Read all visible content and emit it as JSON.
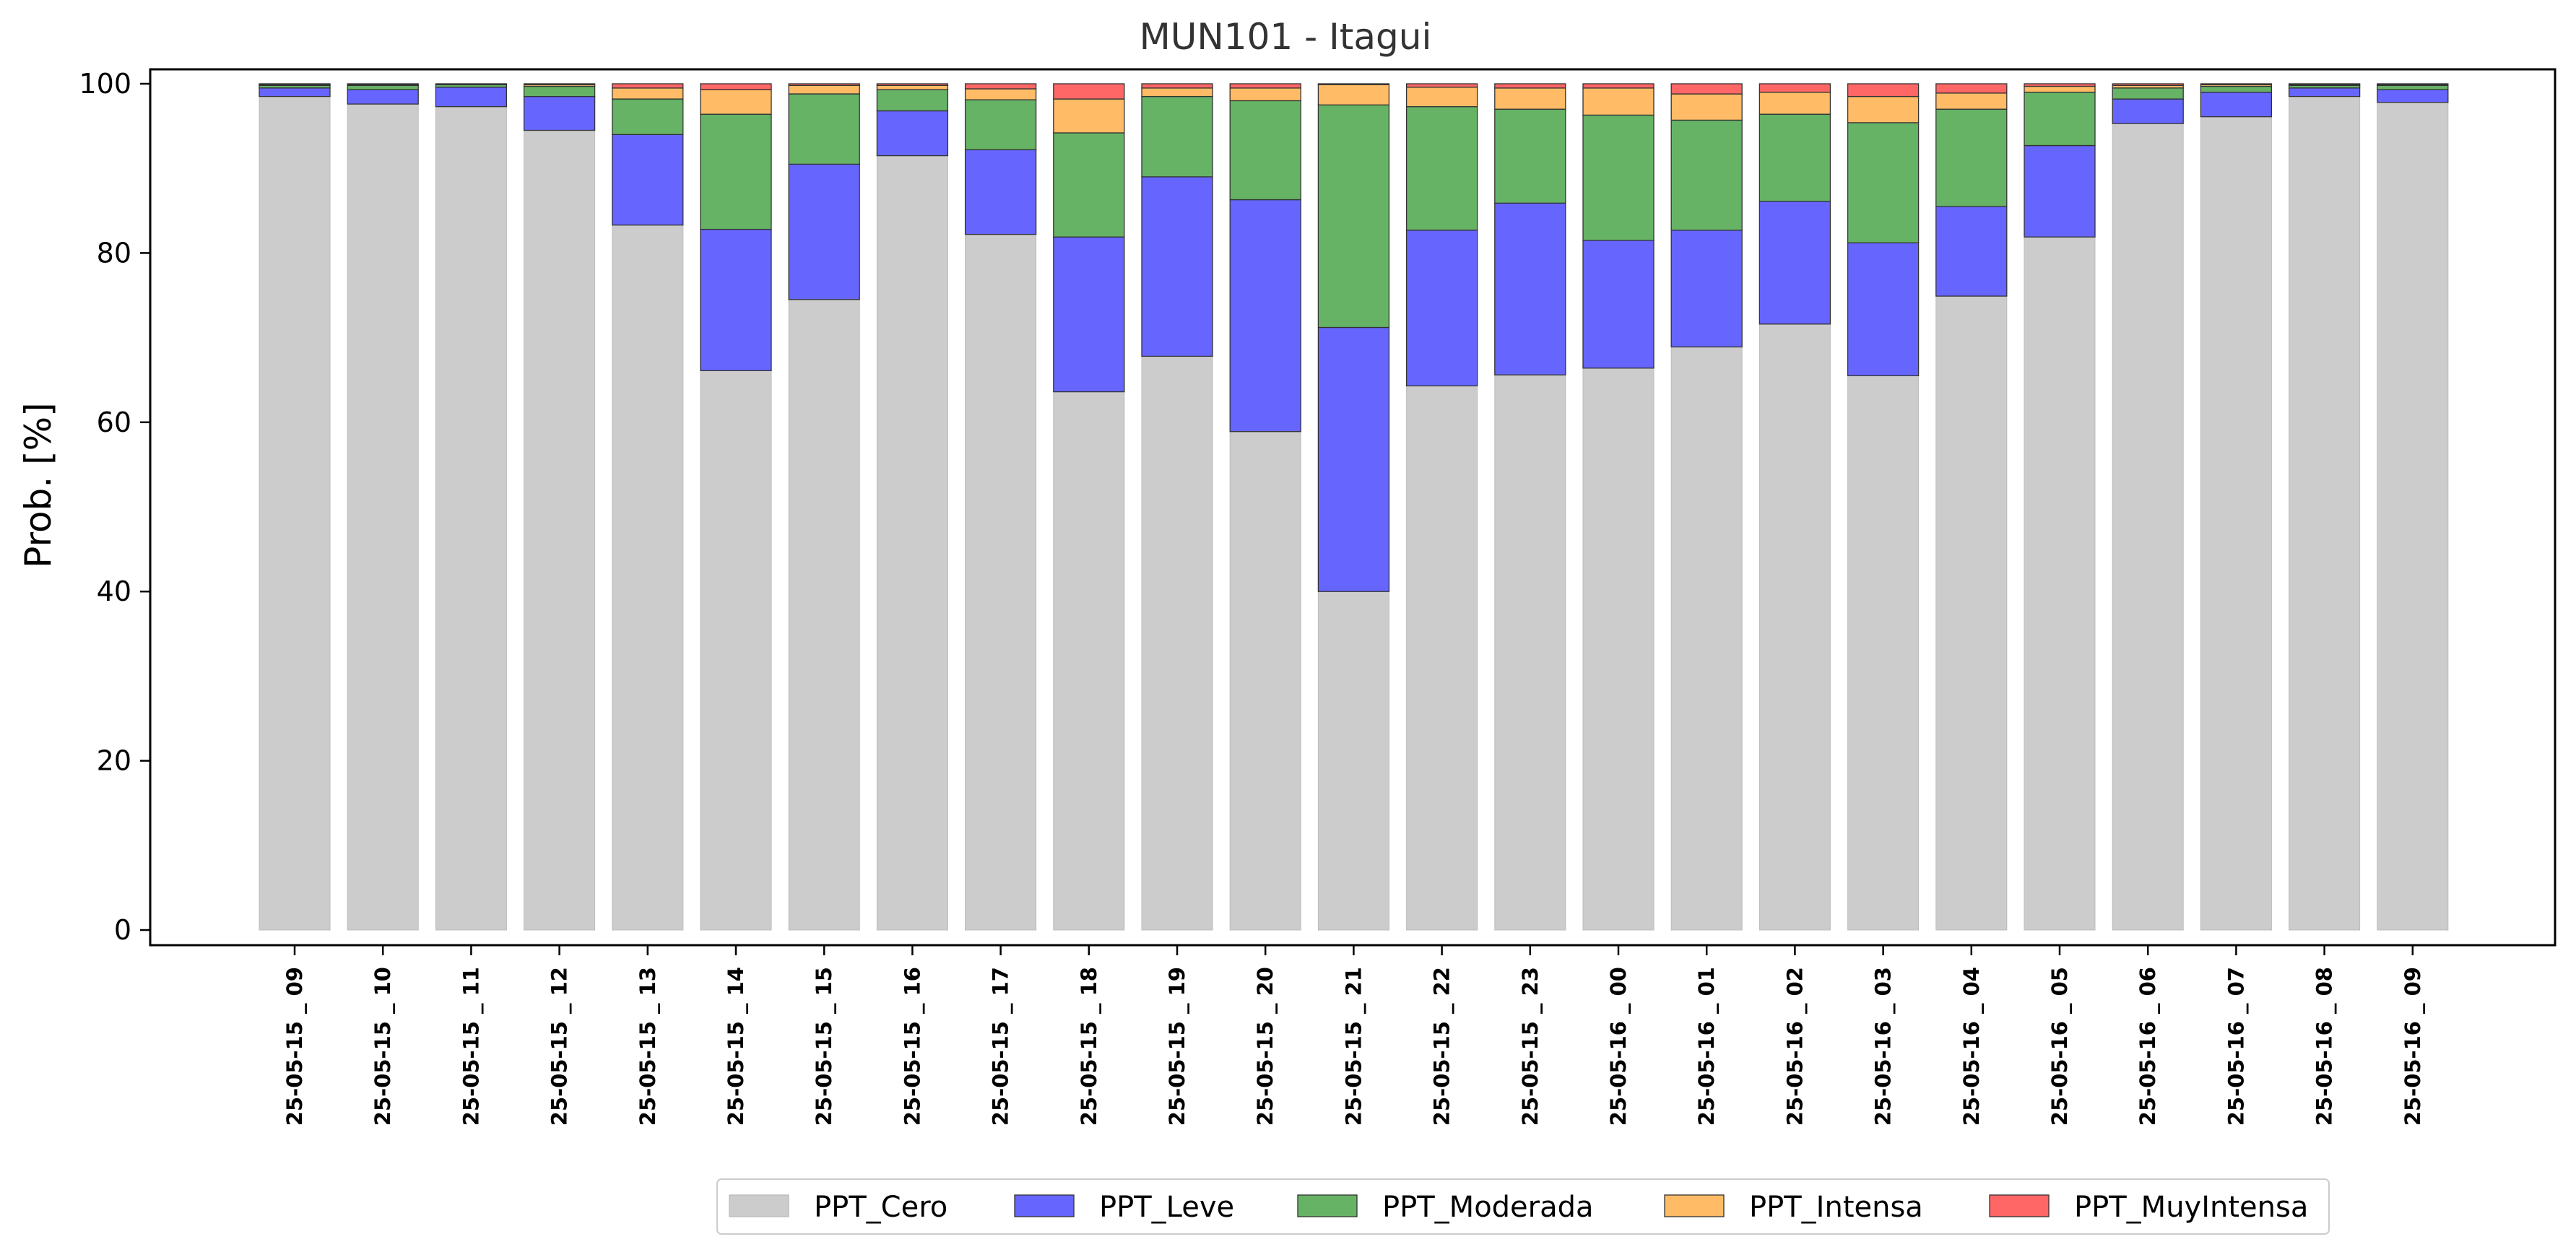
{
  "chart_data": {
    "type": "bar",
    "stacked": true,
    "title": "MUN101 - Itagui",
    "xlabel": "",
    "ylabel": "Prob. [%]",
    "ylim": [
      0,
      102
    ],
    "yticks": [
      "0",
      "20",
      "40",
      "60",
      "80",
      "100"
    ],
    "grid": false,
    "legend_position": "bottom-center",
    "categories": [
      "25-05-15 _ 09",
      "25-05-15 _ 10",
      "25-05-15 _ 11",
      "25-05-15 _ 12",
      "25-05-15 _ 13",
      "25-05-15 _ 14",
      "25-05-15 _ 15",
      "25-05-15 _ 16",
      "25-05-15 _ 17",
      "25-05-15 _ 18",
      "25-05-15 _ 19",
      "25-05-15 _ 20",
      "25-05-15 _ 21",
      "25-05-15 _ 22",
      "25-05-15 _ 23",
      "25-05-16 _ 00",
      "25-05-16 _ 01",
      "25-05-16 _ 02",
      "25-05-16 _ 03",
      "25-05-16 _ 04",
      "25-05-16 _ 05",
      "25-05-16 _ 06",
      "25-05-16 _ 07",
      "25-05-16 _ 08",
      "25-05-16 _ 09"
    ],
    "series": [
      {
        "name": "PPT_Cero",
        "color": "#cccccc",
        "values": [
          98.5,
          97.6,
          97.3,
          94.5,
          83.3,
          66.1,
          74.5,
          91.5,
          82.2,
          63.6,
          67.8,
          58.9,
          40.0,
          64.3,
          65.6,
          66.4,
          68.9,
          71.6,
          65.5,
          74.9,
          81.9,
          95.3,
          96.1,
          98.5,
          97.8
        ]
      },
      {
        "name": "PPT_Leve",
        "color": "#6666ff",
        "values": [
          1.0,
          1.7,
          2.3,
          4.0,
          10.7,
          16.7,
          16.0,
          5.3,
          10.0,
          18.3,
          21.2,
          27.4,
          31.2,
          18.4,
          20.3,
          15.1,
          13.8,
          14.5,
          15.7,
          10.6,
          10.8,
          2.9,
          2.9,
          1.0,
          1.5
        ]
      },
      {
        "name": "PPT_Moderada",
        "color": "#66b366",
        "values": [
          0.3,
          0.5,
          0.3,
          1.2,
          4.2,
          13.6,
          8.3,
          2.5,
          5.9,
          12.3,
          9.5,
          11.7,
          26.3,
          14.6,
          11.1,
          14.8,
          13.0,
          10.3,
          14.2,
          11.5,
          6.3,
          1.3,
          0.7,
          0.3,
          0.5
        ]
      },
      {
        "name": "PPT_Intensa",
        "color": "#ffbb66",
        "values": [
          0.1,
          0.1,
          0.1,
          0.2,
          1.3,
          2.9,
          1.0,
          0.5,
          1.3,
          4.0,
          1.0,
          1.5,
          2.4,
          2.3,
          2.5,
          3.2,
          3.1,
          2.6,
          3.1,
          1.9,
          0.7,
          0.3,
          0.2,
          0.1,
          0.1
        ]
      },
      {
        "name": "PPT_MuyIntensa",
        "color": "#ff6666",
        "values": [
          0.1,
          0.1,
          0.0,
          0.1,
          0.5,
          0.7,
          0.2,
          0.2,
          0.6,
          1.8,
          0.5,
          0.5,
          0.1,
          0.4,
          0.5,
          0.5,
          1.2,
          1.0,
          1.5,
          1.1,
          0.3,
          0.2,
          0.1,
          0.1,
          0.1
        ]
      }
    ]
  }
}
